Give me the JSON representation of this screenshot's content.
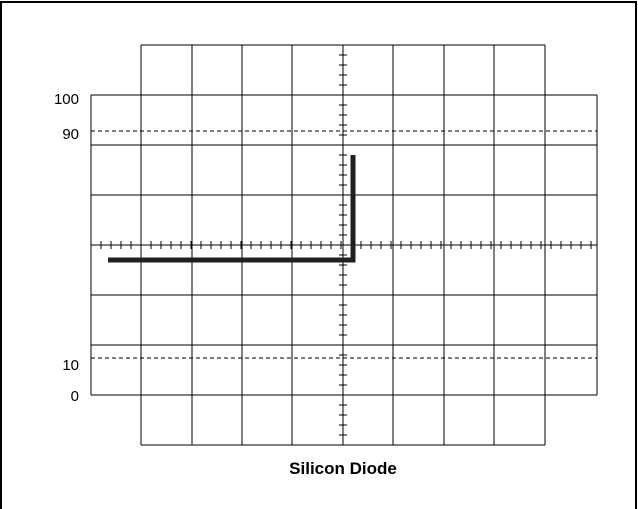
{
  "scope": {
    "caption": "Silicon Diode",
    "level_labels": {
      "top_100": "100",
      "top_90": "90",
      "bottom_10": "10",
      "bottom_0": "0"
    }
  }
}
